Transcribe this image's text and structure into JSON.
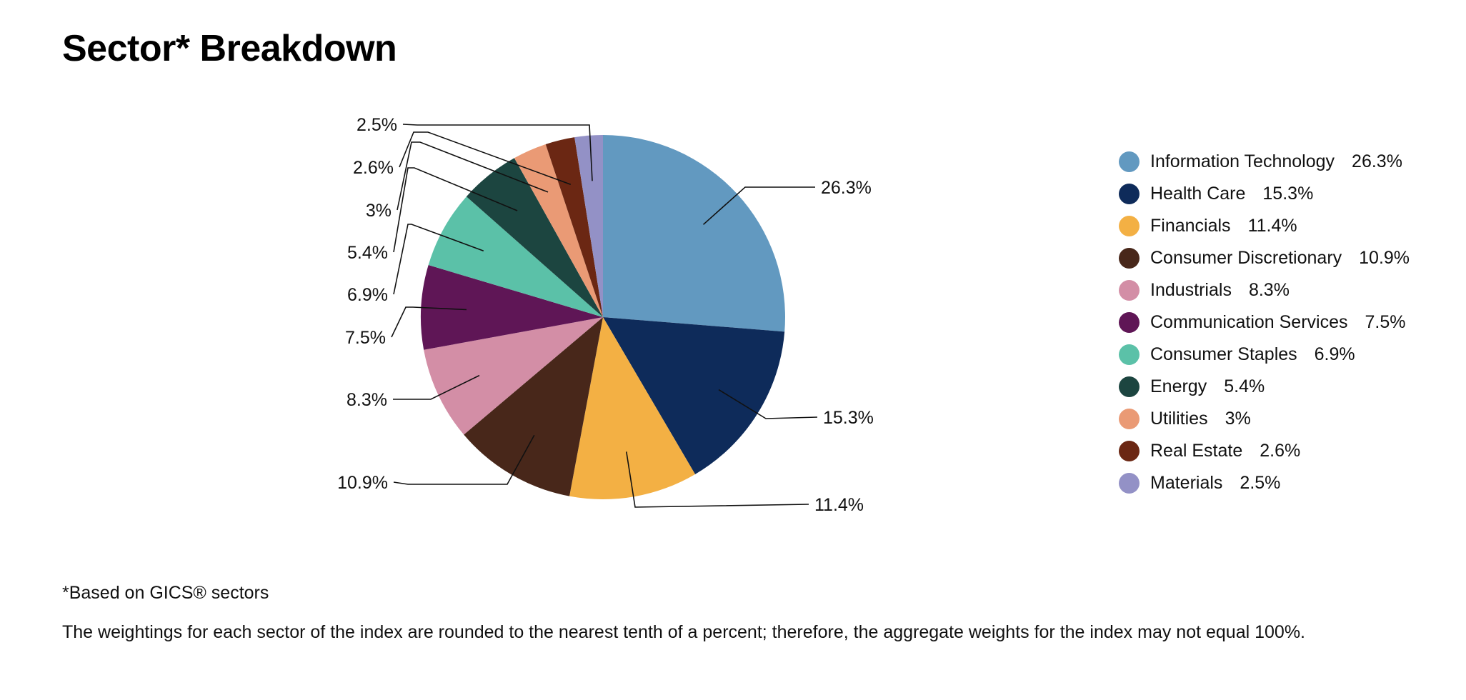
{
  "title": "Sector* Breakdown",
  "footnote": "*Based on GICS® sectors",
  "disclaimer": "The weightings for each sector of the index are rounded to the nearest tenth of a percent; therefore, the aggregate weights for the index may not equal 100%.",
  "chart_data": {
    "type": "pie",
    "title": "Sector* Breakdown",
    "start_angle": "12 o'clock",
    "direction": "clockwise",
    "legend_position": "right",
    "slices": [
      {
        "label": "Information Technology",
        "value": 26.3,
        "value_label": "26.3%",
        "color": "#6299c0"
      },
      {
        "label": "Health Care",
        "value": 15.3,
        "value_label": "15.3%",
        "color": "#0e2b5a"
      },
      {
        "label": "Financials",
        "value": 11.4,
        "value_label": "11.4%",
        "color": "#f3b044"
      },
      {
        "label": "Consumer Discretionary",
        "value": 10.9,
        "value_label": "10.9%",
        "color": "#48271a"
      },
      {
        "label": "Industrials",
        "value": 8.3,
        "value_label": "8.3%",
        "color": "#d38ea6"
      },
      {
        "label": "Communication Services",
        "value": 7.5,
        "value_label": "7.5%",
        "color": "#5f1656"
      },
      {
        "label": "Consumer Staples",
        "value": 6.9,
        "value_label": "6.9%",
        "color": "#5bc1a8"
      },
      {
        "label": "Energy",
        "value": 5.4,
        "value_label": "5.4%",
        "color": "#1c4540"
      },
      {
        "label": "Utilities",
        "value": 3,
        "value_label": "3%",
        "color": "#ea9a75"
      },
      {
        "label": "Real Estate",
        "value": 2.6,
        "value_label": "2.6%",
        "color": "#6b2713"
      },
      {
        "label": "Materials",
        "value": 2.5,
        "value_label": "2.5%",
        "color": "#9391c6"
      }
    ]
  }
}
